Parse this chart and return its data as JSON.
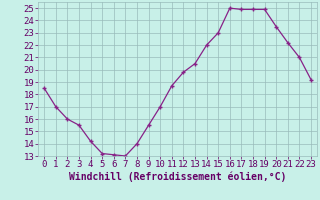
{
  "x": [
    0,
    1,
    2,
    3,
    4,
    5,
    6,
    7,
    8,
    9,
    10,
    11,
    12,
    13,
    14,
    15,
    16,
    17,
    18,
    19,
    20,
    21,
    22,
    23
  ],
  "y": [
    18.5,
    17.0,
    16.0,
    15.5,
    14.2,
    13.2,
    13.1,
    13.0,
    14.0,
    15.5,
    17.0,
    18.7,
    19.8,
    20.5,
    22.0,
    23.0,
    25.0,
    24.9,
    24.9,
    24.9,
    23.5,
    22.2,
    21.0,
    19.2
  ],
  "xlabel": "Windchill (Refroidissement éolien,°C)",
  "xlim": [
    -0.5,
    23.5
  ],
  "ylim": [
    13,
    25.5
  ],
  "ytick_labels": [
    "13",
    "14",
    "15",
    "16",
    "17",
    "18",
    "19",
    "20",
    "21",
    "22",
    "23",
    "24",
    "25"
  ],
  "yticks": [
    13,
    14,
    15,
    16,
    17,
    18,
    19,
    20,
    21,
    22,
    23,
    24,
    25
  ],
  "xticks": [
    0,
    1,
    2,
    3,
    4,
    5,
    6,
    7,
    8,
    9,
    10,
    11,
    12,
    13,
    14,
    15,
    16,
    17,
    18,
    19,
    20,
    21,
    22,
    23
  ],
  "line_color": "#882288",
  "marker_color": "#882288",
  "bg_color": "#c8f0e8",
  "plot_bg_color": "#c8f0e8",
  "grid_color": "#99bbbb",
  "font_color": "#660066",
  "tick_font_size": 6.5,
  "xlabel_font_size": 7.0
}
